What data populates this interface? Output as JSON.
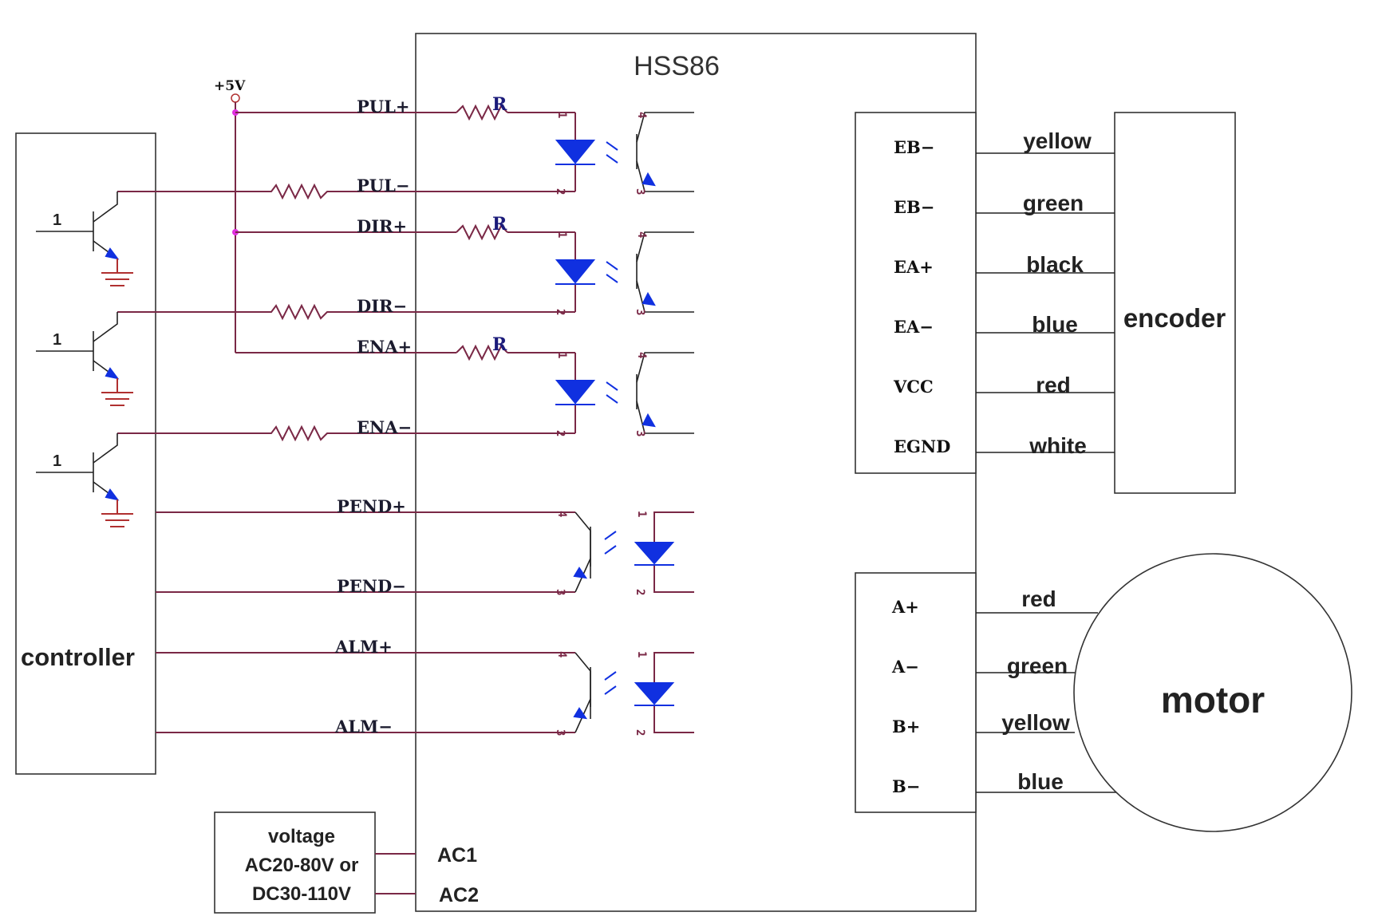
{
  "driver": {
    "title": "HSS86"
  },
  "supply_v": "+5V",
  "resistor_label": "R",
  "controller": {
    "label": "controller",
    "transistor_pin": "1"
  },
  "signals": [
    {
      "id": "pul_p",
      "label": "PUL+"
    },
    {
      "id": "pul_m",
      "label": "PUL−"
    },
    {
      "id": "dir_p",
      "label": "DIR+"
    },
    {
      "id": "dir_m",
      "label": "DIR−"
    },
    {
      "id": "ena_p",
      "label": "ENA+"
    },
    {
      "id": "ena_m",
      "label": "ENA−"
    },
    {
      "id": "pend_p",
      "label": "PEND+"
    },
    {
      "id": "pend_m",
      "label": "PEND−"
    },
    {
      "id": "alm_p",
      "label": "ALM+"
    },
    {
      "id": "alm_m",
      "label": "ALM−"
    }
  ],
  "power": {
    "lines": [
      "voltage",
      "AC20-80V or",
      "DC30-110V"
    ],
    "ac1": "AC1",
    "ac2": "AC2"
  },
  "encoder": {
    "label": "encoder",
    "pins": [
      {
        "name": "EB−",
        "wire": "yellow"
      },
      {
        "name": "EB−",
        "wire": "green"
      },
      {
        "name": "EA+",
        "wire": "black"
      },
      {
        "name": "EA−",
        "wire": "blue"
      },
      {
        "name": "VCC",
        "wire": "red"
      },
      {
        "name": "EGND",
        "wire": "white"
      }
    ]
  },
  "motor": {
    "label": "motor",
    "pins": [
      {
        "name": "A+",
        "wire": "red"
      },
      {
        "name": "A−",
        "wire": "green"
      },
      {
        "name": "B+",
        "wire": "yellow"
      },
      {
        "name": "B−",
        "wire": "blue"
      }
    ]
  }
}
